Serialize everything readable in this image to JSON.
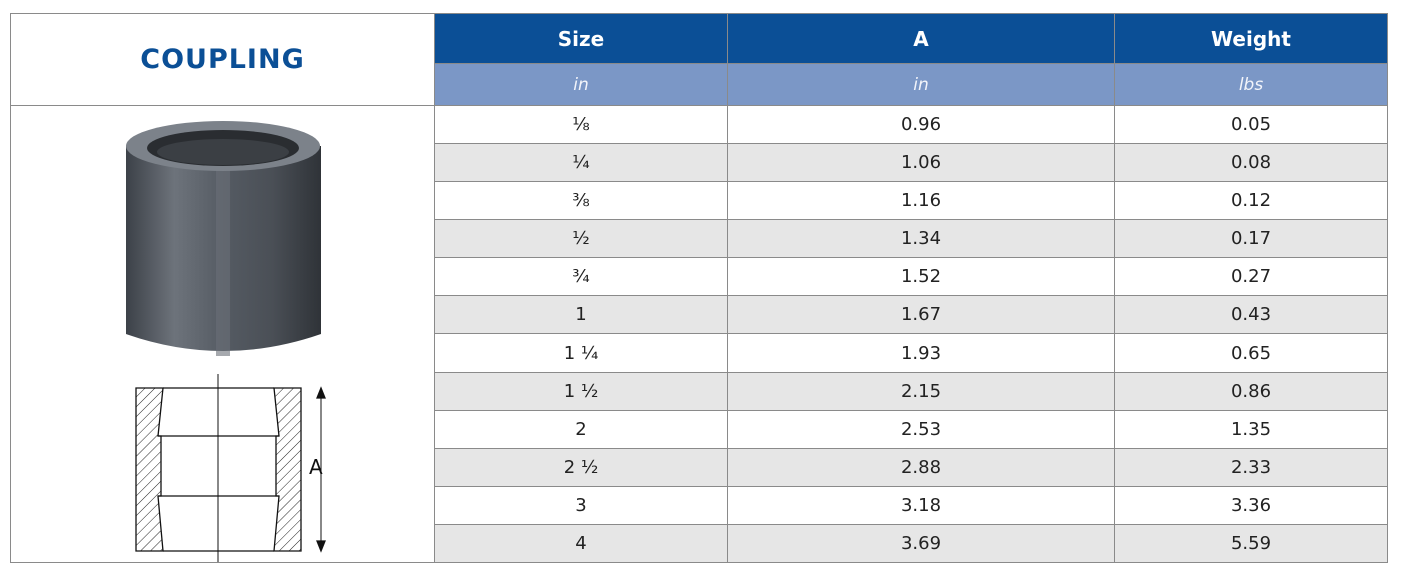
{
  "title": "COUPLING",
  "table": {
    "columns": [
      {
        "name": "Size",
        "unit": "in"
      },
      {
        "name": "A",
        "unit": "in"
      },
      {
        "name": "Weight",
        "unit": "lbs"
      }
    ],
    "rows": [
      [
        "⅛",
        "0.96",
        "0.05"
      ],
      [
        "¼",
        "1.06",
        "0.08"
      ],
      [
        "⅜",
        "1.16",
        "0.12"
      ],
      [
        "½",
        "1.34",
        "0.17"
      ],
      [
        "¾",
        "1.52",
        "0.27"
      ],
      [
        "1",
        "1.67",
        "0.43"
      ],
      [
        "1 ¼",
        "1.93",
        "0.65"
      ],
      [
        "1 ½",
        "2.15",
        "0.86"
      ],
      [
        "2",
        "2.53",
        "1.35"
      ],
      [
        "2 ½",
        "2.88",
        "2.33"
      ],
      [
        "3",
        "3.18",
        "3.36"
      ],
      [
        "4",
        "3.69",
        "5.59"
      ]
    ]
  },
  "diagram": {
    "dimension_label": "A"
  }
}
